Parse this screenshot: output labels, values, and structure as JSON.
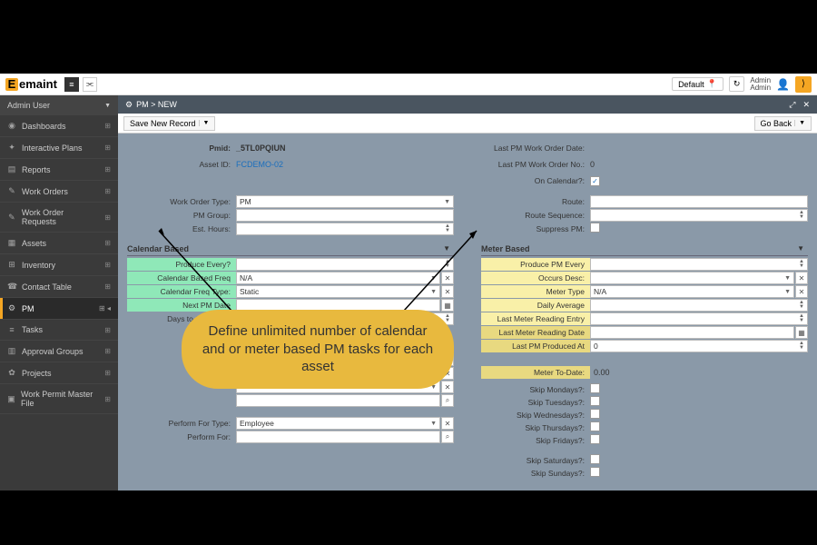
{
  "brand": "emaint",
  "topbar": {
    "default_btn": "Default",
    "user_line1": "Admin",
    "user_line2": "Admin"
  },
  "sidebar": {
    "user": "Admin User",
    "items": [
      {
        "icon": "◉",
        "label": "Dashboards"
      },
      {
        "icon": "✦",
        "label": "Interactive Plans"
      },
      {
        "icon": "▤",
        "label": "Reports"
      },
      {
        "icon": "✎",
        "label": "Work Orders"
      },
      {
        "icon": "✎",
        "label": "Work Order Requests"
      },
      {
        "icon": "▦",
        "label": "Assets"
      },
      {
        "icon": "⊞",
        "label": "Inventory"
      },
      {
        "icon": "☎",
        "label": "Contact Table"
      },
      {
        "icon": "⚙",
        "label": "PM",
        "active": true
      },
      {
        "icon": "≡",
        "label": "Tasks"
      },
      {
        "icon": "▥",
        "label": "Approval Groups"
      },
      {
        "icon": "✿",
        "label": "Projects"
      },
      {
        "icon": "▣",
        "label": "Work Permit Master File"
      }
    ]
  },
  "breadcrumb": {
    "icon": "⚙",
    "path": "PM > NEW"
  },
  "toolbar": {
    "save": "Save New Record",
    "goback": "Go Back"
  },
  "form": {
    "left_top": [
      {
        "label": "Pmid:",
        "value": "_5TL0PQIUN",
        "bold": true
      },
      {
        "label": "Asset ID:",
        "value": "FCDEMO-02",
        "link": true
      }
    ],
    "right_top": [
      {
        "label": "Last PM Work Order Date:",
        "value": ""
      },
      {
        "label": "Last PM Work Order No.:",
        "value": "0"
      },
      {
        "label": "On Calendar?:",
        "check": true
      }
    ],
    "left_mid": [
      {
        "label": "Work Order Type:",
        "value": "PM",
        "dd": true
      },
      {
        "label": "PM Group:",
        "value": ""
      },
      {
        "label": "Est. Hours:",
        "value": "",
        "spin": true
      }
    ],
    "right_mid": [
      {
        "label": "Route:",
        "value": ""
      },
      {
        "label": "Route Sequence:",
        "value": "",
        "spin": true
      },
      {
        "label": "Suppress PM:",
        "check": false
      }
    ],
    "calendar_hdr": "Calendar Based",
    "calendar": [
      {
        "label": "Produce Every?",
        "green": true,
        "spin": true
      },
      {
        "label": "Calendar Based Freq",
        "green": true,
        "value": "N/A",
        "dd": true,
        "x": true
      },
      {
        "label": "Calendar Freq Type:",
        "green": true,
        "value": "Static",
        "dd": true,
        "x": true
      },
      {
        "label": "Next PM Date",
        "green": true,
        "cal": true
      },
      {
        "label": "Days to Complete:",
        "spin": true
      }
    ],
    "meter_hdr": "Meter Based",
    "meter": [
      {
        "label": "Produce PM Every",
        "yellow": true,
        "spin": true
      },
      {
        "label": "Occurs Desc:",
        "yellow": true,
        "dd": true,
        "x": true
      },
      {
        "label": "Meter Type",
        "yellow": true,
        "value": "N/A",
        "dd": true,
        "x": true
      },
      {
        "label": "Daily Average",
        "yellow": true,
        "spin": true
      },
      {
        "label": "Last Meter Reading Entry",
        "yellow": true,
        "spin": true
      },
      {
        "label": "Last Meter Reading Date",
        "yellow": true,
        "dark": true,
        "cal": true
      },
      {
        "label": "Last PM Produced At",
        "yellow": true,
        "dark": true,
        "value": "0",
        "spin": true
      }
    ],
    "meter_todate": {
      "label": "Meter To-Date:",
      "value": "0.00",
      "yellow": true,
      "dark": true
    },
    "extra_left": [
      {
        "dd": true,
        "x": true
      },
      {
        "dd": true,
        "x": true
      },
      {
        "dd": true,
        "x": true
      },
      {
        "search": true
      }
    ],
    "perform": [
      {
        "label": "Perform For Type:",
        "value": "Employee",
        "dd": true,
        "x": true
      },
      {
        "label": "Perform For:",
        "search": true
      }
    ],
    "skips": [
      {
        "label": "Skip Mondays?:"
      },
      {
        "label": "Skip Tuesdays?:"
      },
      {
        "label": "Skip Wednesdays?:"
      },
      {
        "label": "Skip Thursdays?:"
      },
      {
        "label": "Skip Fridays?:"
      }
    ],
    "skips2": [
      {
        "label": "Skip Saturdays?:"
      },
      {
        "label": "Skip Sundays?:"
      }
    ]
  },
  "callout": "Define unlimited number of calendar and or meter based PM tasks for each asset"
}
